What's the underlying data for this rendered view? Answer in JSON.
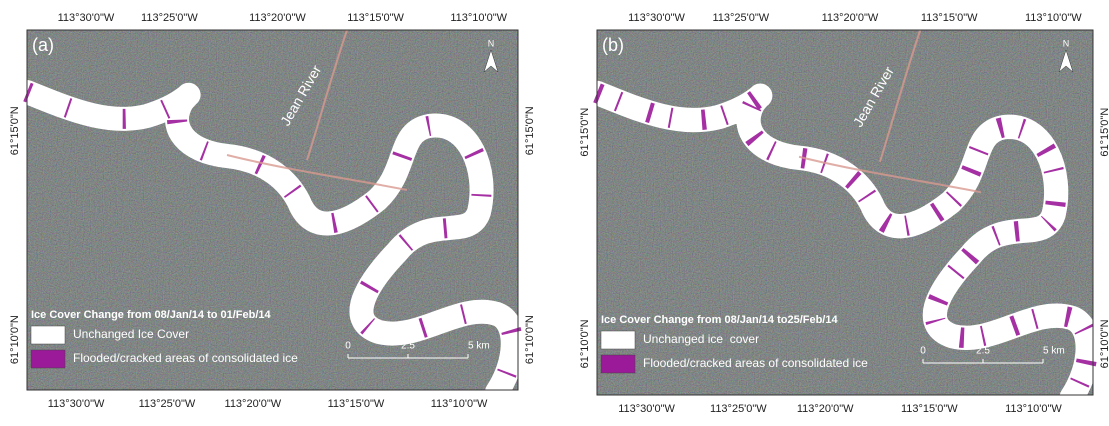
{
  "panels": [
    {
      "label": "(a)",
      "top_labels": [
        "113°30'0\"W",
        "113°25'0\"W",
        "113°20'0\"W",
        "113°15'0\"W",
        "113°10'0\"W"
      ],
      "bottom_labels": [
        "113°30'0\"W",
        "113°25'0\"W",
        "113°20'0\"W",
        "113°15'0\"W",
        "113°10'0\"W"
      ],
      "left_labels": [
        "61°15'0\"N",
        "61°10'0\"N"
      ],
      "right_labels": [
        "61°15'0\"N",
        "61°10'0\"N"
      ],
      "north": "N",
      "river_label": "Jean River",
      "legend": {
        "title": "Ice Cover Change from 08/Jan/14 to 01/Feb/14",
        "items": [
          "Unchanged Ice Cover",
          "Flooded/cracked areas of consolidated ice"
        ]
      },
      "scale_labels": [
        "0",
        "2.5",
        "5 km"
      ]
    },
    {
      "label": "(b)",
      "top_labels": [
        "113°30'0\"W",
        "113°25'0\"W",
        "113°20'0\"W",
        "113°15'0\"W",
        "113°10'0\"W"
      ],
      "bottom_labels": [
        "113°30'0\"W",
        "113°25'0\"W",
        "113°20'0\"W",
        "113°15'0\"W",
        "113°10'0\"W"
      ],
      "left_labels": [
        "61°15'0\"N",
        "61°10'0\"N"
      ],
      "right_labels": [
        "61°15'0\"N",
        "61°10'0\"N"
      ],
      "north": "N",
      "river_label": "Jean River",
      "legend": {
        "title": "Ice Cover Change from 08/Jan/14 to25/Feb/14",
        "items": [
          "Unchanged ice  cover",
          "Flooded/cracked areas of consolidated ice"
        ]
      },
      "scale_labels": [
        "0",
        "2.5",
        "5 km"
      ]
    }
  ]
}
